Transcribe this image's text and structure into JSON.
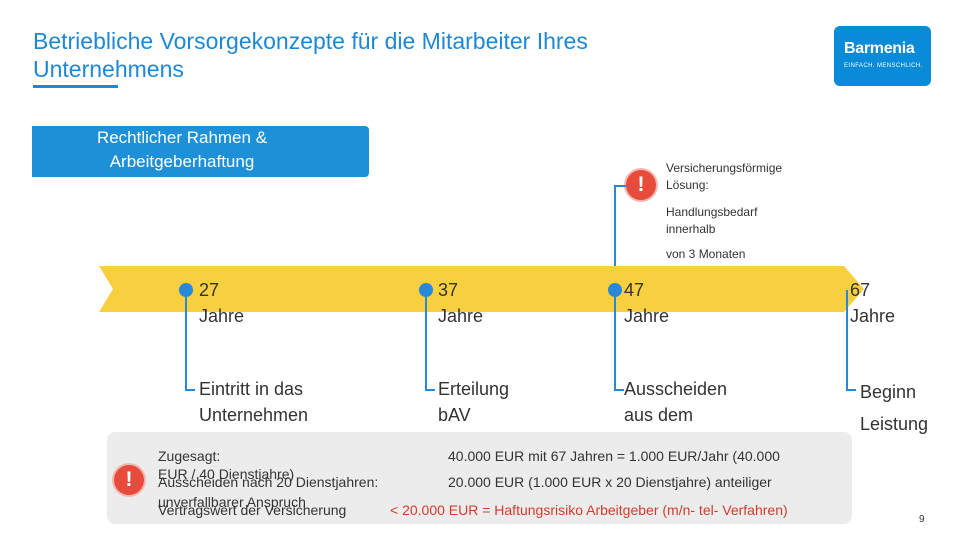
{
  "header": {
    "title_line1": "Betriebliche Vorsorgekonzepte für die Mitarbeiter Ihres",
    "title_line2": "Unternehmens",
    "logo_brand": "Barmenia",
    "logo_tagline": "EINFACH. MENSCHLICH."
  },
  "section_box": {
    "line1": "Rechtlicher Rahmen &",
    "line2": "Arbeitgeberhaftung"
  },
  "callout": {
    "line1": "Versicherungsförmige",
    "line2": "Lösung:",
    "line3": "Handlungsbedarf",
    "line4": "innerhalb",
    "line5": "von 3 Monaten"
  },
  "timeline": [
    {
      "age": "27",
      "unit": "Jahre",
      "event_line1": "Eintritt in das",
      "event_line2": "Unternehmen"
    },
    {
      "age": "37",
      "unit": "Jahre",
      "event_line1": "Erteilung",
      "event_line2": "bAV"
    },
    {
      "age": "47",
      "unit": "Jahre",
      "event_line1": "Ausscheiden",
      "event_line2": "aus dem"
    },
    {
      "age": "67",
      "unit": "Jahre",
      "event_line1": "Beginn",
      "event_line2": "Leistung"
    }
  ],
  "summary": {
    "row1_label": "Zugesagt:",
    "row1_value": "40.000 EUR mit 67 Jahren = 1.000 EUR/Jahr (40.000",
    "row1b_label": "EUR / 40 Dienstjahre)",
    "row2_label": "Ausscheiden nach 20 Dienstjahren:",
    "row2_value": "20.000 EUR (1.000 EUR x 20 Dienstjahre) anteiliger",
    "row2b_label": "unverfallbarer Anspruch",
    "row3_label": "Vertragswert der Versicherung",
    "row3_value": "< 20.000 EUR = Haftungsrisiko Arbeitgeber (m/n- tel- Verfahren)"
  },
  "page_number": "9",
  "colors": {
    "accent": "#1e88d6",
    "arrow": "#f7cf3f",
    "warning": "#e64b3c",
    "risk_text": "#d63a2a"
  }
}
